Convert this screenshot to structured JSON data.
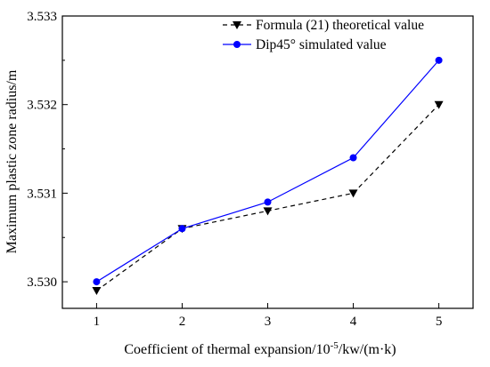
{
  "chart_data": {
    "type": "line",
    "xlabel": "Coefficient of thermal expansion/10",
    "xlabel_sup": "-5",
    "xlabel_suffix": "/kw/(m·k)",
    "ylabel": "Maximum plastic zone radius/m",
    "xlim": [
      0.6,
      5.4
    ],
    "ylim": [
      3.5297,
      3.533
    ],
    "x_ticks": [
      "1",
      "2",
      "3",
      "4",
      "5"
    ],
    "y_ticks": [
      "3.530",
      "3.531",
      "3.532",
      "3.533"
    ],
    "legend_position": "top-left",
    "x": [
      1,
      2,
      3,
      4,
      5
    ],
    "series": [
      {
        "name": "Formula (21) theoretical value",
        "values": [
          3.5299,
          3.5306,
          3.5308,
          3.531,
          3.532
        ],
        "color": "#000000",
        "line_style": "dashed",
        "marker": "triangle-down"
      },
      {
        "name": "Dip45° simulated value",
        "values": [
          3.53,
          3.5306,
          3.5309,
          3.5314,
          3.5325
        ],
        "color": "#0000ff",
        "line_style": "solid",
        "marker": "circle"
      }
    ]
  }
}
